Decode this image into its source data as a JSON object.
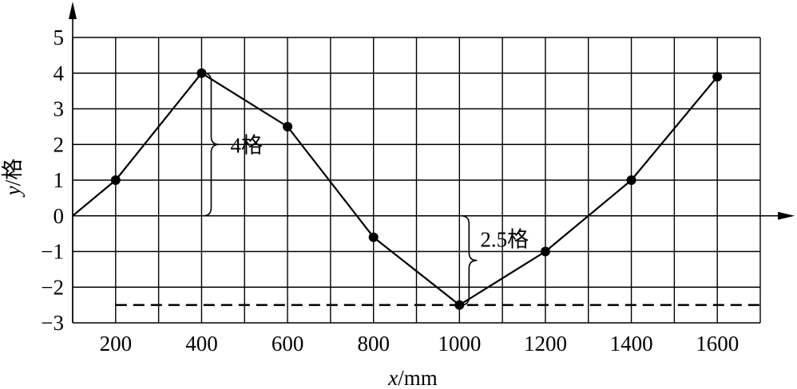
{
  "chart_data": {
    "type": "line",
    "title": "",
    "xlabel": "x/mm",
    "ylabel": "y/格",
    "xlim": [
      100,
      1700
    ],
    "ylim": [
      -3,
      5
    ],
    "grid": true,
    "grid_x_step": 100,
    "grid_y_step": 1,
    "axis_arrows": true,
    "legend": "none",
    "x_ticks": [
      200,
      400,
      600,
      800,
      1000,
      1200,
      1400,
      1600
    ],
    "x_tick_labels": [
      "200",
      "400",
      "600",
      "800",
      "1000",
      "1200",
      "1400",
      "1600"
    ],
    "y_ticks": [
      5,
      4,
      3,
      2,
      1,
      0,
      -1,
      -2,
      -3
    ],
    "y_tick_labels": [
      "5",
      "4",
      "3",
      "2",
      "1",
      "0",
      "−1",
      "−2",
      "−3"
    ],
    "series": [
      {
        "x": [
          100,
          200,
          400,
          600,
          800,
          1000,
          1200,
          1400,
          1600
        ],
        "y": [
          0,
          1,
          4,
          2.5,
          -0.6,
          -2.5,
          -1,
          1,
          3.9
        ],
        "markers": [
          false,
          true,
          true,
          true,
          true,
          true,
          true,
          true,
          true
        ]
      }
    ],
    "reference_lines": [
      {
        "y": -2.5,
        "x_from": 200,
        "x_to": 1700,
        "style": "dashed"
      }
    ],
    "annotations": [
      {
        "type": "brace",
        "x": 400,
        "y_from": 0,
        "y_to": 4,
        "label": "4格"
      },
      {
        "type": "brace",
        "x": 1000,
        "y_from": 0,
        "y_to": -2.5,
        "label": "2.5格"
      }
    ],
    "colors": {
      "line": "#000000",
      "grid": "#000000",
      "marker": "#000000",
      "background": "#ffffff"
    }
  }
}
